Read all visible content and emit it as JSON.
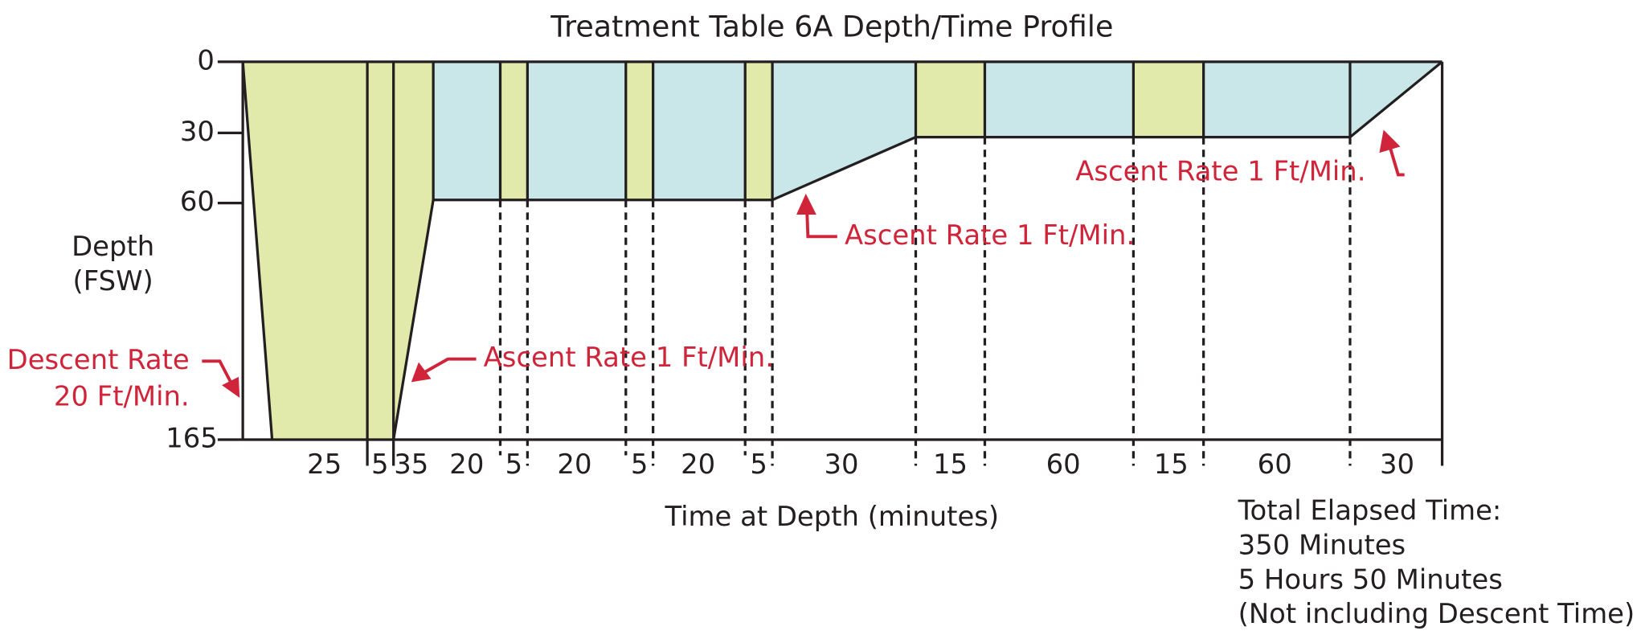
{
  "title": "Treatment Table 6A Depth/Time Profile",
  "y_axis": {
    "label_lines": [
      "Depth",
      "(FSW)"
    ],
    "ticks": [
      "0",
      "30",
      "60",
      "165"
    ]
  },
  "x_axis": {
    "label": "Time at Depth (minutes)",
    "segment_labels": [
      "25",
      "5",
      "35",
      "20",
      "5",
      "20",
      "5",
      "20",
      "5",
      "30",
      "15",
      "60",
      "15",
      "60",
      "30"
    ]
  },
  "annotations": {
    "descent": [
      "Descent Rate",
      "20 Ft/Min."
    ],
    "ascent_1": "Ascent Rate 1 Ft/Min.",
    "ascent_2": "Ascent Rate 1 Ft/Min.",
    "ascent_3": "Ascent Rate 1 Ft/Min."
  },
  "total": [
    "Total Elapsed Time:",
    "350 Minutes",
    "5 Hours 50 Minutes",
    "(Not including Descent Time)"
  ]
}
